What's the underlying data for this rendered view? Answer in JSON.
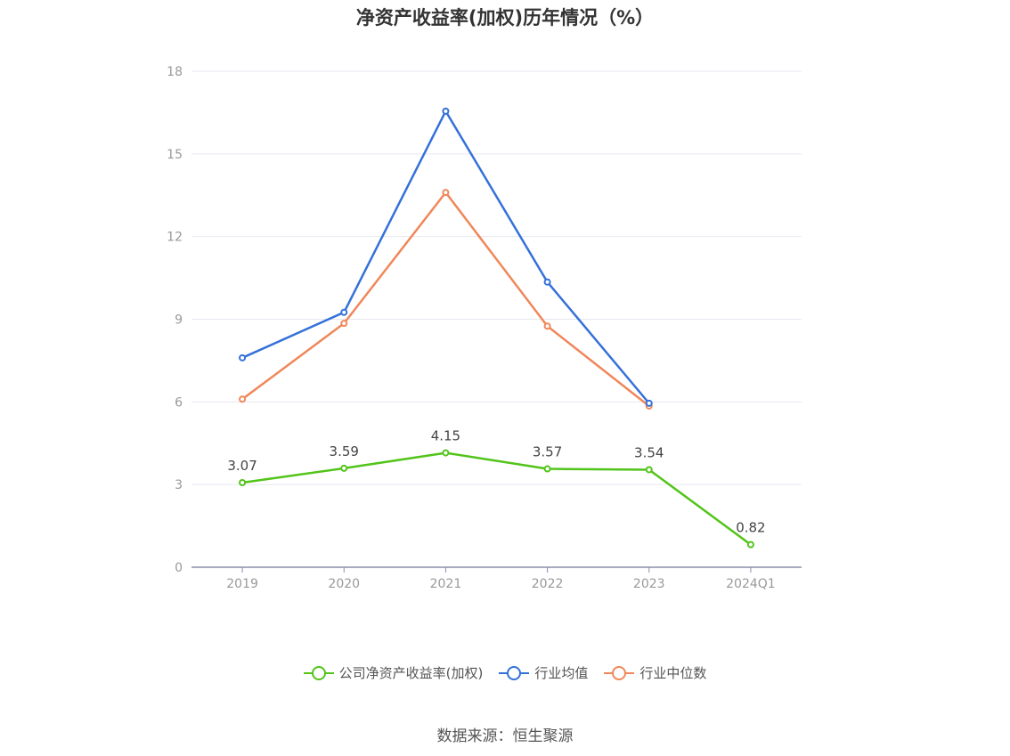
{
  "chart_data": {
    "type": "line",
    "title": "净资产收益率(加权)历年情况（%）",
    "categories": [
      "2019",
      "2020",
      "2021",
      "2022",
      "2023",
      "2024Q1"
    ],
    "ylim": [
      0,
      18
    ],
    "yticks": [
      0,
      3,
      6,
      9,
      12,
      15,
      18
    ],
    "grid": true,
    "legend_position": "bottom",
    "series": [
      {
        "name": "公司净资产收益率(加权)",
        "color": "#52c41a",
        "values": [
          3.07,
          3.59,
          4.15,
          3.57,
          3.54,
          0.82
        ],
        "show_labels": true
      },
      {
        "name": "行业均值",
        "color": "#3471d9",
        "values": [
          7.6,
          9.25,
          16.55,
          10.35,
          5.95,
          null
        ],
        "show_labels": false
      },
      {
        "name": "行业中位数",
        "color": "#f0875a",
        "values": [
          6.1,
          8.85,
          13.6,
          8.75,
          5.85,
          null
        ],
        "show_labels": false
      }
    ]
  },
  "source": "数据来源：恒生聚源"
}
